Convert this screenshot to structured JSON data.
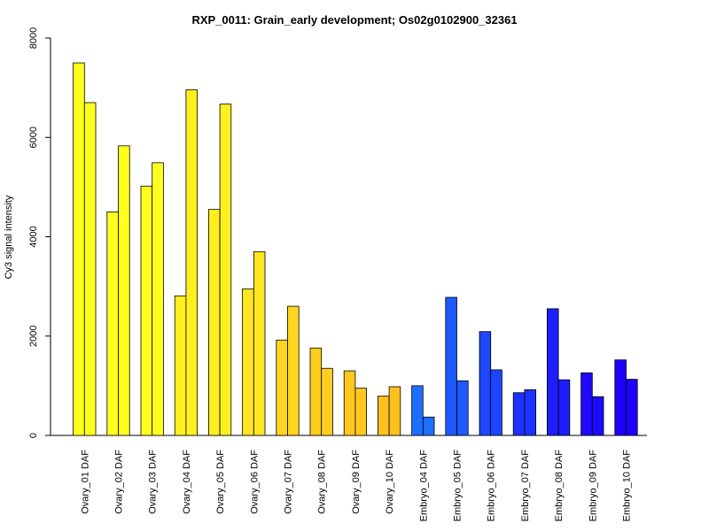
{
  "chart_data": {
    "type": "bar",
    "title": "RXP_0011: Grain_early development; Os02g0102900_32361",
    "xlabel": "",
    "ylabel": "Cy3 signal intensity",
    "ylim": [
      0,
      8000
    ],
    "yticks": [
      0,
      2000,
      4000,
      6000,
      8000
    ],
    "grid": false,
    "categories": [
      "Ovary_01 DAF",
      "Ovary_02 DAF",
      "Ovary_03 DAF",
      "Ovary_04 DAF",
      "Ovary_05 DAF",
      "Ovary_06 DAF",
      "Ovary_07 DAF",
      "Ovary_08 DAF",
      "Ovary_09 DAF",
      "Ovary_10 DAF",
      "Embryo_04 DAF",
      "Embryo_05 DAF",
      "Embryo_06 DAF",
      "Embryo_07 DAF",
      "Embryo_08 DAF",
      "Embryo_09 DAF",
      "Embryo_10 DAF"
    ],
    "series": [
      {
        "values": [
          7500,
          4500,
          5020,
          2810,
          4550,
          2950,
          1920,
          1760,
          1300,
          790,
          1000,
          2780,
          2090,
          860,
          2550,
          1260,
          1520
        ]
      },
      {
        "values": [
          6700,
          5830,
          5490,
          6960,
          6670,
          3700,
          2600,
          1350,
          950,
          980,
          370,
          1100,
          1320,
          920,
          1120,
          780,
          1130
        ]
      }
    ],
    "colors": [
      "#ffff1e",
      "#ffff1e",
      "#ffff1e",
      "#fff01e",
      "#ffef1e",
      "#ffe61e",
      "#ffd61e",
      "#ffcd1e",
      "#ffc81e",
      "#ffc11e",
      "#1e6eff",
      "#1e5aff",
      "#1e46ff",
      "#1e32ff",
      "#1e1eff",
      "#1e0aff",
      "#1e00ff"
    ]
  }
}
